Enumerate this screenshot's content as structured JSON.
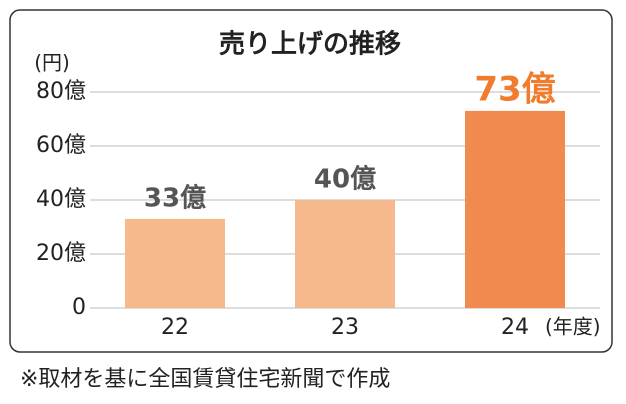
{
  "chart_data": {
    "type": "bar",
    "title": "売り上げの推移",
    "y_unit": "(円)",
    "x_unit": "(年度)",
    "categories": [
      "22",
      "23",
      "24"
    ],
    "values": [
      3300000000,
      4000000000,
      7300000000
    ],
    "value_labels": [
      "33億",
      "40億",
      "73億"
    ],
    "colors": [
      "#f6b98c",
      "#f6b98c",
      "#f08a4e"
    ],
    "label_colors": [
      "#555555",
      "#555555",
      "#f07d2e"
    ],
    "ylim": [
      0,
      8000000000
    ],
    "yticks": [
      0,
      {
        "value": 2000000000,
        "label": "20億"
      },
      {
        "value": 4000000000,
        "label": "40億"
      },
      {
        "value": 6000000000,
        "label": "60億"
      },
      {
        "value": 8000000000,
        "label": "80億"
      }
    ],
    "grid": true,
    "note": "※取材を基に全国賃貸住宅新聞で作成"
  }
}
